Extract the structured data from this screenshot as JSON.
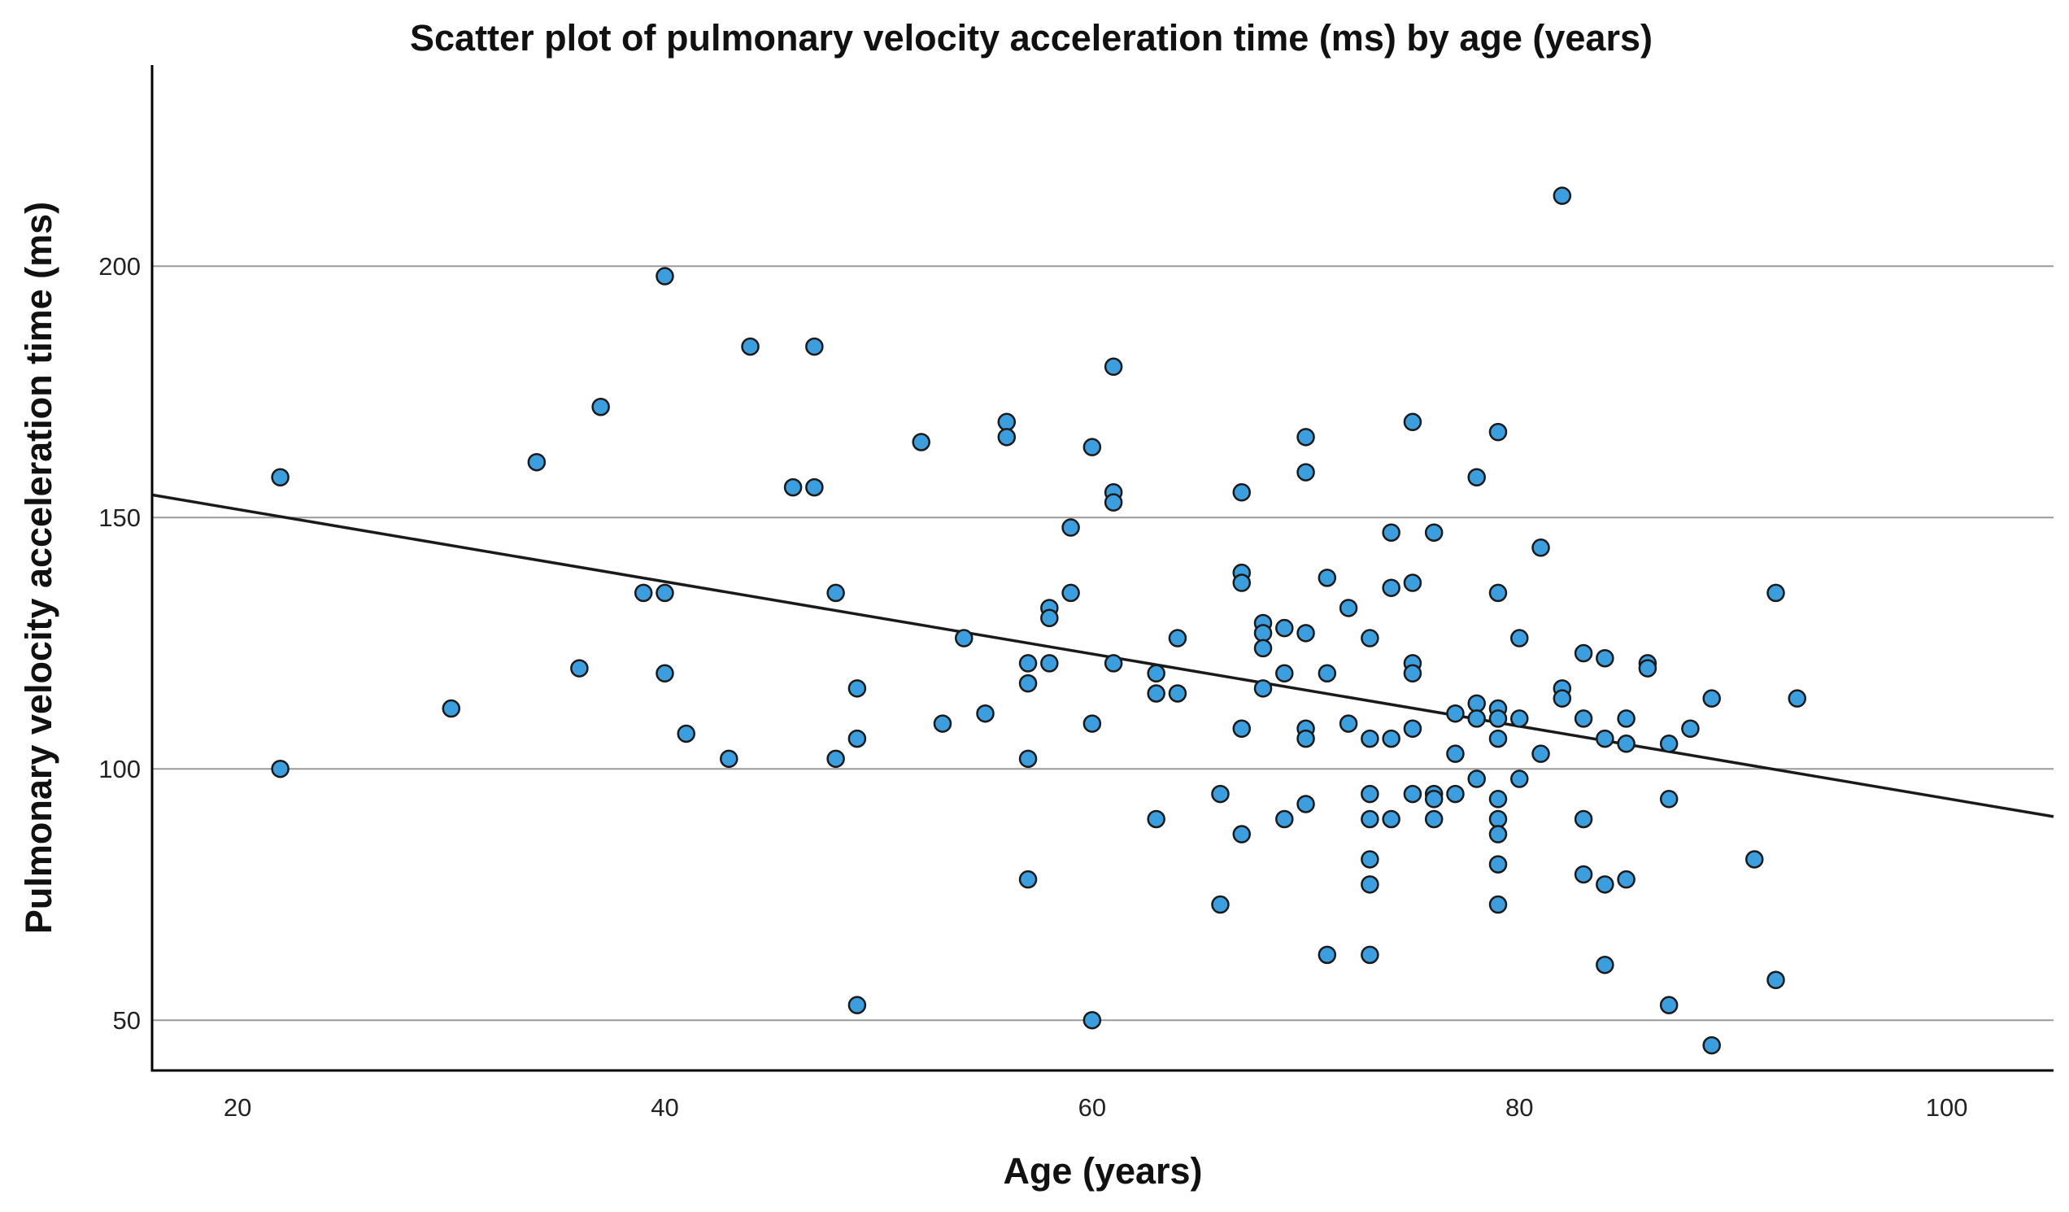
{
  "chart_data": {
    "type": "scatter",
    "title": "Scatter plot of pulmonary velocity acceleration time (ms) by age (years)",
    "xlabel": "Age (years)",
    "ylabel": "Pulmonary velocity acceleration time (ms)",
    "xlim": [
      16,
      105
    ],
    "ylim": [
      40,
      240
    ],
    "xticks": [
      20,
      40,
      60,
      80,
      100
    ],
    "yticks": [
      50,
      100,
      150,
      200
    ],
    "grid": "horizontal",
    "colors": {
      "point_fill": "#3b9ede",
      "point_edge": "#1a1a1a",
      "fit_line": "#1a1a1a",
      "grid": "#9a9a9a"
    },
    "fit_line": {
      "x": [
        16,
        105
      ],
      "y": [
        154.5,
        90.5
      ]
    },
    "points": [
      {
        "x": 22,
        "y": 158
      },
      {
        "x": 22,
        "y": 100
      },
      {
        "x": 30,
        "y": 112
      },
      {
        "x": 34,
        "y": 161
      },
      {
        "x": 36,
        "y": 120
      },
      {
        "x": 37,
        "y": 172
      },
      {
        "x": 39,
        "y": 135
      },
      {
        "x": 40,
        "y": 198
      },
      {
        "x": 40,
        "y": 135
      },
      {
        "x": 40,
        "y": 119
      },
      {
        "x": 41,
        "y": 107
      },
      {
        "x": 43,
        "y": 102
      },
      {
        "x": 44,
        "y": 184
      },
      {
        "x": 46,
        "y": 156
      },
      {
        "x": 47,
        "y": 156
      },
      {
        "x": 47,
        "y": 184
      },
      {
        "x": 48,
        "y": 135
      },
      {
        "x": 48,
        "y": 102
      },
      {
        "x": 49,
        "y": 116
      },
      {
        "x": 49,
        "y": 106
      },
      {
        "x": 49,
        "y": 53
      },
      {
        "x": 52,
        "y": 165
      },
      {
        "x": 53,
        "y": 109
      },
      {
        "x": 54,
        "y": 126
      },
      {
        "x": 55,
        "y": 111
      },
      {
        "x": 56,
        "y": 169
      },
      {
        "x": 56,
        "y": 166
      },
      {
        "x": 57,
        "y": 121
      },
      {
        "x": 57,
        "y": 117
      },
      {
        "x": 57,
        "y": 102
      },
      {
        "x": 57,
        "y": 78
      },
      {
        "x": 58,
        "y": 132
      },
      {
        "x": 58,
        "y": 130
      },
      {
        "x": 58,
        "y": 121
      },
      {
        "x": 59,
        "y": 148
      },
      {
        "x": 59,
        "y": 135
      },
      {
        "x": 60,
        "y": 164
      },
      {
        "x": 60,
        "y": 109
      },
      {
        "x": 60,
        "y": 50
      },
      {
        "x": 61,
        "y": 180
      },
      {
        "x": 61,
        "y": 155
      },
      {
        "x": 61,
        "y": 153
      },
      {
        "x": 61,
        "y": 121
      },
      {
        "x": 63,
        "y": 119
      },
      {
        "x": 63,
        "y": 115
      },
      {
        "x": 63,
        "y": 90
      },
      {
        "x": 64,
        "y": 126
      },
      {
        "x": 64,
        "y": 115
      },
      {
        "x": 66,
        "y": 95
      },
      {
        "x": 66,
        "y": 73
      },
      {
        "x": 67,
        "y": 155
      },
      {
        "x": 67,
        "y": 139
      },
      {
        "x": 67,
        "y": 137
      },
      {
        "x": 67,
        "y": 108
      },
      {
        "x": 67,
        "y": 87
      },
      {
        "x": 68,
        "y": 129
      },
      {
        "x": 68,
        "y": 127
      },
      {
        "x": 68,
        "y": 124
      },
      {
        "x": 68,
        "y": 116
      },
      {
        "x": 69,
        "y": 128
      },
      {
        "x": 69,
        "y": 119
      },
      {
        "x": 69,
        "y": 90
      },
      {
        "x": 70,
        "y": 166
      },
      {
        "x": 70,
        "y": 159
      },
      {
        "x": 70,
        "y": 127
      },
      {
        "x": 70,
        "y": 108
      },
      {
        "x": 70,
        "y": 106
      },
      {
        "x": 70,
        "y": 93
      },
      {
        "x": 71,
        "y": 138
      },
      {
        "x": 71,
        "y": 119
      },
      {
        "x": 71,
        "y": 63
      },
      {
        "x": 72,
        "y": 132
      },
      {
        "x": 72,
        "y": 109
      },
      {
        "x": 73,
        "y": 126
      },
      {
        "x": 73,
        "y": 106
      },
      {
        "x": 73,
        "y": 95
      },
      {
        "x": 73,
        "y": 90
      },
      {
        "x": 73,
        "y": 82
      },
      {
        "x": 73,
        "y": 77
      },
      {
        "x": 73,
        "y": 63
      },
      {
        "x": 74,
        "y": 147
      },
      {
        "x": 74,
        "y": 136
      },
      {
        "x": 74,
        "y": 106
      },
      {
        "x": 74,
        "y": 90
      },
      {
        "x": 75,
        "y": 169
      },
      {
        "x": 75,
        "y": 137
      },
      {
        "x": 75,
        "y": 121
      },
      {
        "x": 75,
        "y": 119
      },
      {
        "x": 75,
        "y": 108
      },
      {
        "x": 75,
        "y": 95
      },
      {
        "x": 76,
        "y": 147
      },
      {
        "x": 76,
        "y": 95
      },
      {
        "x": 76,
        "y": 94
      },
      {
        "x": 76,
        "y": 90
      },
      {
        "x": 77,
        "y": 111
      },
      {
        "x": 77,
        "y": 103
      },
      {
        "x": 77,
        "y": 95
      },
      {
        "x": 78,
        "y": 158
      },
      {
        "x": 78,
        "y": 113
      },
      {
        "x": 78,
        "y": 110
      },
      {
        "x": 78,
        "y": 98
      },
      {
        "x": 79,
        "y": 167
      },
      {
        "x": 79,
        "y": 135
      },
      {
        "x": 79,
        "y": 112
      },
      {
        "x": 79,
        "y": 110
      },
      {
        "x": 79,
        "y": 106
      },
      {
        "x": 79,
        "y": 94
      },
      {
        "x": 79,
        "y": 90
      },
      {
        "x": 79,
        "y": 87
      },
      {
        "x": 79,
        "y": 81
      },
      {
        "x": 79,
        "y": 73
      },
      {
        "x": 80,
        "y": 126
      },
      {
        "x": 80,
        "y": 110
      },
      {
        "x": 80,
        "y": 98
      },
      {
        "x": 81,
        "y": 144
      },
      {
        "x": 81,
        "y": 103
      },
      {
        "x": 82,
        "y": 214
      },
      {
        "x": 82,
        "y": 116
      },
      {
        "x": 82,
        "y": 114
      },
      {
        "x": 83,
        "y": 123
      },
      {
        "x": 83,
        "y": 110
      },
      {
        "x": 83,
        "y": 90
      },
      {
        "x": 83,
        "y": 79
      },
      {
        "x": 84,
        "y": 122
      },
      {
        "x": 84,
        "y": 106
      },
      {
        "x": 84,
        "y": 77
      },
      {
        "x": 84,
        "y": 61
      },
      {
        "x": 85,
        "y": 110
      },
      {
        "x": 85,
        "y": 105
      },
      {
        "x": 85,
        "y": 78
      },
      {
        "x": 86,
        "y": 121
      },
      {
        "x": 86,
        "y": 120
      },
      {
        "x": 87,
        "y": 105
      },
      {
        "x": 87,
        "y": 94
      },
      {
        "x": 87,
        "y": 53
      },
      {
        "x": 88,
        "y": 108
      },
      {
        "x": 89,
        "y": 114
      },
      {
        "x": 89,
        "y": 45
      },
      {
        "x": 91,
        "y": 82
      },
      {
        "x": 92,
        "y": 135
      },
      {
        "x": 92,
        "y": 58
      },
      {
        "x": 93,
        "y": 114
      }
    ]
  }
}
